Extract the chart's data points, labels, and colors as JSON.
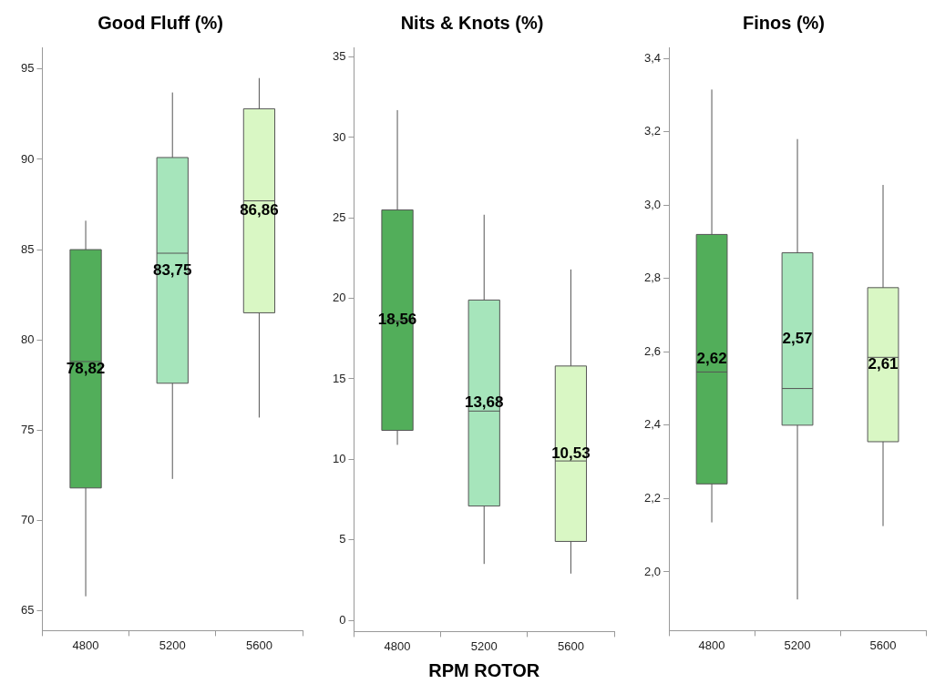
{
  "chart_data": [
    {
      "type": "box",
      "title": "Good Fluff (%)",
      "categories": [
        "4800",
        "5200",
        "5600"
      ],
      "colors": [
        "#52ae5a",
        "#a6e5bb",
        "#d9f7c4"
      ],
      "boxes": [
        {
          "low": 65.8,
          "q1": 71.8,
          "median": 78.8,
          "q3": 85.0,
          "high": 86.6
        },
        {
          "low": 72.3,
          "q1": 77.6,
          "median": 84.8,
          "q3": 90.1,
          "high": 93.7
        },
        {
          "low": 75.7,
          "q1": 81.5,
          "median": 87.7,
          "q3": 92.8,
          "high": 94.5
        }
      ],
      "ylim": [
        63.9,
        96.2
      ],
      "yticks": [
        65,
        70,
        75,
        80,
        85,
        90,
        95
      ],
      "grid": false,
      "annotations": [
        "78,82",
        "83,75",
        "86,86"
      ]
    },
    {
      "type": "box",
      "title": "Nits & Knots (%)",
      "xlabel": "RPM ROTOR",
      "categories": [
        "4800",
        "5200",
        "5600"
      ],
      "colors": [
        "#52ae5a",
        "#a6e5bb",
        "#d9f7c4"
      ],
      "boxes": [
        {
          "low": 10.9,
          "q1": 11.8,
          "median": 18.6,
          "q3": 25.5,
          "high": 31.7
        },
        {
          "low": 3.5,
          "q1": 7.1,
          "median": 13.0,
          "q3": 19.9,
          "high": 25.2
        },
        {
          "low": 2.9,
          "q1": 4.9,
          "median": 9.9,
          "q3": 15.8,
          "high": 21.8
        }
      ],
      "ylim": [
        -0.7,
        35.6
      ],
      "yticks": [
        0,
        5,
        10,
        15,
        20,
        25,
        30,
        35
      ],
      "grid": false,
      "annotations": [
        "18,56",
        "13,68",
        "10,53"
      ]
    },
    {
      "type": "box",
      "title": "Finos (%)",
      "categories": [
        "4800",
        "5200",
        "5600"
      ],
      "colors": [
        "#52ae5a",
        "#a6e5bb",
        "#d9f7c4"
      ],
      "boxes": [
        {
          "low": 2.135,
          "q1": 2.24,
          "median": 2.545,
          "q3": 2.92,
          "high": 3.315
        },
        {
          "low": 1.925,
          "q1": 2.4,
          "median": 2.5,
          "q3": 2.87,
          "high": 3.18
        },
        {
          "low": 2.125,
          "q1": 2.355,
          "median": 2.585,
          "q3": 2.775,
          "high": 3.055
        }
      ],
      "ylim": [
        1.84,
        3.43
      ],
      "yticks": [
        {
          "value": 2.0,
          "label": "2,0"
        },
        {
          "value": 2.2,
          "label": "2,2"
        },
        {
          "value": 2.4,
          "label": "2,4"
        },
        {
          "value": 2.6,
          "label": "2,6"
        },
        {
          "value": 2.8,
          "label": "2,8"
        },
        {
          "value": 3.0,
          "label": "3,0"
        },
        {
          "value": 3.2,
          "label": "3,2"
        },
        {
          "value": 3.4,
          "label": "3,4"
        }
      ],
      "grid": false,
      "annotations": [
        "2,62",
        "2,57",
        "2,61"
      ]
    }
  ]
}
